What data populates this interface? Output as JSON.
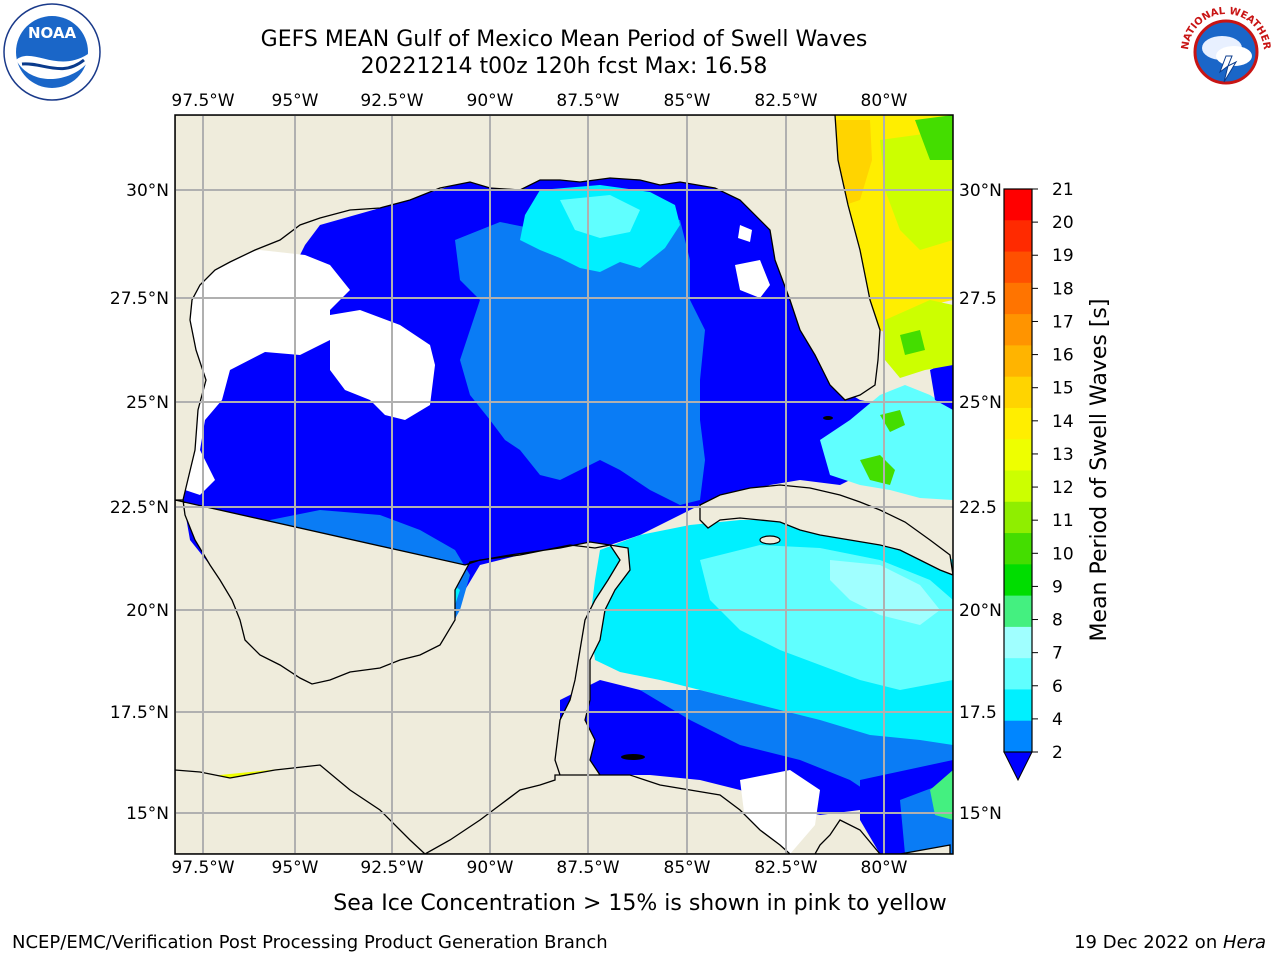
{
  "title": {
    "line1": "GEFS MEAN Gulf of Mexico Mean Period of Swell Waves",
    "line2": "20221214 t00z 120h fcst   Max: 16.58"
  },
  "map": {
    "lon_labels": [
      "97.5°W",
      "95°W",
      "92.5°W",
      "90°W",
      "87.5°W",
      "85°W",
      "82.5°W",
      "80°W"
    ],
    "lat_labels_left": [
      "30°N",
      "27.5°N",
      "25°N",
      "22.5°N",
      "20°N",
      "17.5°N",
      "15°N"
    ],
    "lat_labels_right": [
      "30°N",
      "27.5",
      "25°N",
      "22.5",
      "20°N",
      "17.5",
      "15°N"
    ],
    "land_color": "#efecdc",
    "gridline_color": "#b0b0b0"
  },
  "colorbar": {
    "label": "Mean Period of Swell Waves [s]",
    "ticks": [
      "21",
      "20",
      "19",
      "18",
      "17",
      "16",
      "15",
      "14",
      "13",
      "12",
      "11",
      "10",
      "9",
      "8",
      "7",
      "6",
      "4",
      "2"
    ],
    "colors_top_to_bottom": [
      "#ff0000",
      "#ff2a00",
      "#ff5000",
      "#ff7400",
      "#ff9400",
      "#ffb400",
      "#ffd400",
      "#ffee00",
      "#eeff00",
      "#ccff00",
      "#8fee00",
      "#44dd00",
      "#00dd00",
      "#44f080",
      "#a0ffff",
      "#60ffff",
      "#00f0ff",
      "#0086ff",
      "#0000ff"
    ]
  },
  "caption": "Sea Ice Concentration > 15% is shown in pink to yellow",
  "footer": {
    "left": "NCEP/EMC/Verification Post Processing Product Generation Branch",
    "right_date": "19 Dec 2022 on ",
    "right_host": "Hera"
  },
  "logos": {
    "noaa_text": "NOAA",
    "nws_text": "NATIONAL WEATHER SERVICE"
  }
}
